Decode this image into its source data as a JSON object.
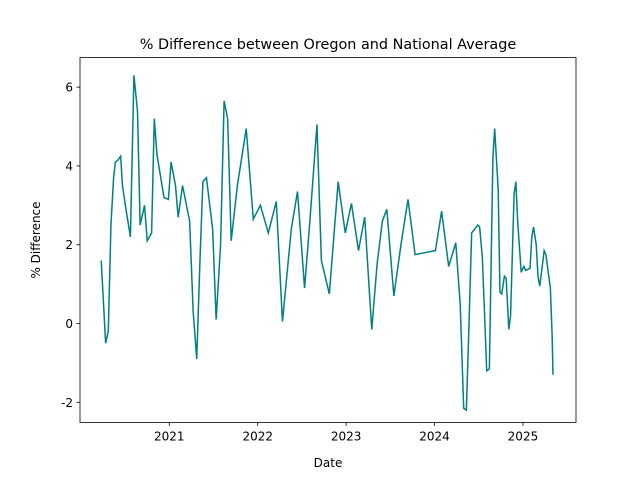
{
  "chart_data": {
    "type": "line",
    "title": "% Difference between Oregon and National Average",
    "x_label": "Date",
    "y_label": "% Difference",
    "x": [
      2020.23,
      2020.28,
      2020.31,
      2020.34,
      2020.37,
      2020.39,
      2020.42,
      2020.45,
      2020.47,
      2020.51,
      2020.56,
      2020.6,
      2020.64,
      2020.67,
      2020.72,
      2020.75,
      2020.8,
      2020.83,
      2020.86,
      2020.94,
      2020.99,
      2021.02,
      2021.07,
      2021.1,
      2021.15,
      2021.23,
      2021.27,
      2021.31,
      2021.35,
      2021.38,
      2021.42,
      2021.49,
      2021.53,
      2021.58,
      2021.62,
      2021.66,
      2021.7,
      2021.77,
      2021.87,
      2021.95,
      2022.03,
      2022.12,
      2022.21,
      2022.28,
      2022.38,
      2022.45,
      2022.53,
      2022.59,
      2022.67,
      2022.72,
      2022.81,
      2022.91,
      2022.99,
      2023.06,
      2023.14,
      2023.21,
      2023.29,
      2023.35,
      2023.41,
      2023.46,
      2023.54,
      2023.62,
      2023.7,
      2023.78,
      2024.01,
      2024.08,
      2024.16,
      2024.24,
      2024.29,
      2024.33,
      2024.36,
      2024.39,
      2024.42,
      2024.49,
      2024.51,
      2024.54,
      2024.57,
      2024.59,
      2024.62,
      2024.66,
      2024.68,
      2024.72,
      2024.74,
      2024.76,
      2024.79,
      2024.81,
      2024.84,
      2024.86,
      2024.9,
      2024.92,
      2024.94,
      2024.98,
      2025.01,
      2025.03,
      2025.08,
      2025.1,
      2025.12,
      2025.15,
      2025.17,
      2025.19,
      2025.21,
      2025.24,
      2025.26,
      2025.28,
      2025.31,
      2025.33,
      2025.34
    ],
    "series": [
      {
        "name": "% Difference",
        "color": "#008080",
        "values": [
          1.6,
          -0.5,
          -0.2,
          2.5,
          3.7,
          4.1,
          4.15,
          4.25,
          3.5,
          2.9,
          2.2,
          6.3,
          5.4,
          2.5,
          3.0,
          2.1,
          2.3,
          5.2,
          4.3,
          3.2,
          3.15,
          4.1,
          3.5,
          2.7,
          3.5,
          2.6,
          0.3,
          -0.9,
          1.8,
          3.6,
          3.7,
          2.4,
          0.1,
          2.0,
          5.65,
          5.2,
          2.1,
          3.5,
          4.95,
          2.65,
          3.0,
          2.3,
          3.1,
          0.05,
          2.4,
          3.35,
          0.9,
          2.6,
          5.05,
          1.6,
          0.75,
          3.6,
          2.3,
          3.05,
          1.85,
          2.7,
          -0.15,
          1.5,
          2.6,
          2.9,
          0.7,
          2.0,
          3.15,
          1.75,
          1.85,
          2.85,
          1.45,
          2.05,
          0.5,
          -2.15,
          -2.2,
          0.0,
          2.3,
          2.5,
          2.45,
          1.7,
          0.0,
          -1.2,
          -1.15,
          4.2,
          4.95,
          3.4,
          0.8,
          0.75,
          1.2,
          1.15,
          -0.15,
          0.2,
          3.3,
          3.6,
          2.6,
          1.3,
          1.45,
          1.35,
          1.4,
          2.2,
          2.45,
          2.0,
          1.2,
          0.95,
          1.3,
          1.85,
          1.75,
          1.4,
          0.9,
          -0.3,
          -1.3
        ]
      }
    ],
    "xlim": [
      2019.99,
      2025.6
    ],
    "ylim": [
      -2.51,
      6.75
    ],
    "xticks": [
      2021,
      2022,
      2023,
      2024,
      2025
    ],
    "yticks": [
      -2,
      0,
      2,
      4,
      6
    ]
  }
}
